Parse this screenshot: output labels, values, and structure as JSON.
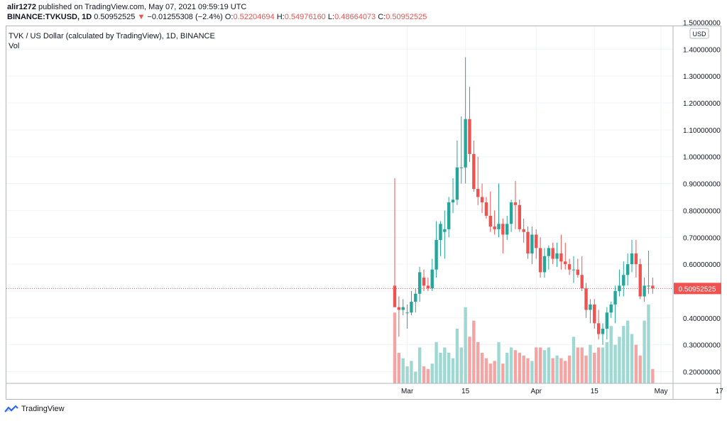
{
  "header": {
    "author": "alir1272",
    "published_text": "published on TradingView.com, May 07, 2021 09:59:19 UTC"
  },
  "ohlc": {
    "symbol": "BINANCE:TVKUSD, 1D",
    "last": "0.50952525",
    "arrow": "▼",
    "change": "−0.01255308 (−2.4%)",
    "o_label": "O:",
    "o": "0.52204694",
    "h_label": "H:",
    "h": "0.54976160",
    "l_label": "L:",
    "l": "0.48664073",
    "c_label": "C:",
    "c": "0.50952525"
  },
  "legend": {
    "title": "TVK / US Dollar (calculated by TradingView), 1D, BINANCE",
    "vol": "Vol"
  },
  "footer": {
    "brand": "TradingView",
    "logo_icon": "tradingview-logo-icon"
  },
  "colors": {
    "up": "#26a69a",
    "down": "#ef5350",
    "vol_up": "#9fd8d2",
    "vol_down": "#f5a4a4",
    "grid": "#f0f3fa",
    "axis_text": "#131722"
  },
  "chart_data": {
    "type": "candlestick",
    "currency": "USD",
    "current_price": 0.50952525,
    "current_price_label": "0.50952525",
    "ylim": [
      0.16,
      1.5
    ],
    "y_ticks": [
      0.2,
      0.3,
      0.4,
      0.5,
      0.6,
      0.7,
      0.8,
      0.9,
      1.0,
      1.1,
      1.2,
      1.3,
      1.4,
      1.5
    ],
    "y_tick_labels": [
      "0.20000000",
      "0.30000000",
      "0.40000000",
      "",
      "0.60000000",
      "0.70000000",
      "0.80000000",
      "0.90000000",
      "1.00000000",
      "1.10000000",
      "1.20000000",
      "1.30000000",
      "1.40000000",
      "1.50000000"
    ],
    "x_labels": [
      {
        "index": 3,
        "label": "Mar"
      },
      {
        "index": 17,
        "label": "15"
      },
      {
        "index": 34,
        "label": "Apr"
      },
      {
        "index": 48,
        "label": "15"
      },
      {
        "index": 64,
        "label": "May"
      },
      {
        "index": 78,
        "label": "17"
      }
    ],
    "candles": [
      [
        0.52,
        0.92,
        0.44,
        0.44
      ],
      [
        0.44,
        0.48,
        0.33,
        0.43
      ],
      [
        0.43,
        0.47,
        0.41,
        0.44
      ],
      [
        0.42,
        0.45,
        0.36,
        0.42
      ],
      [
        0.42,
        0.5,
        0.41,
        0.46
      ],
      [
        0.46,
        0.51,
        0.42,
        0.49
      ],
      [
        0.49,
        0.59,
        0.46,
        0.57
      ],
      [
        0.55,
        0.58,
        0.5,
        0.52
      ],
      [
        0.52,
        0.55,
        0.5,
        0.51
      ],
      [
        0.51,
        0.62,
        0.5,
        0.58
      ],
      [
        0.58,
        0.76,
        0.55,
        0.69
      ],
      [
        0.69,
        0.76,
        0.63,
        0.75
      ],
      [
        0.72,
        0.8,
        0.62,
        0.73
      ],
      [
        0.73,
        0.85,
        0.7,
        0.83
      ],
      [
        0.83,
        0.92,
        0.79,
        0.84
      ],
      [
        0.84,
        1.06,
        0.82,
        0.96
      ],
      [
        0.96,
        1.15,
        0.9,
        0.96
      ],
      [
        0.96,
        1.37,
        0.9,
        1.14
      ],
      [
        1.14,
        1.26,
        0.98,
        1.01
      ],
      [
        1.01,
        1.06,
        0.87,
        0.88
      ],
      [
        0.88,
        1.0,
        0.82,
        0.85
      ],
      [
        0.85,
        0.9,
        0.79,
        0.83
      ],
      [
        0.83,
        0.85,
        0.77,
        0.78
      ],
      [
        0.78,
        0.87,
        0.72,
        0.74
      ],
      [
        0.74,
        0.8,
        0.71,
        0.73
      ],
      [
        0.73,
        0.9,
        0.7,
        0.75
      ],
      [
        0.75,
        0.77,
        0.64,
        0.71
      ],
      [
        0.71,
        0.78,
        0.69,
        0.75
      ],
      [
        0.75,
        0.84,
        0.72,
        0.83
      ],
      [
        0.83,
        0.91,
        0.73,
        0.82
      ],
      [
        0.82,
        0.84,
        0.72,
        0.73
      ],
      [
        0.73,
        0.77,
        0.68,
        0.72
      ],
      [
        0.72,
        0.74,
        0.62,
        0.64
      ],
      [
        0.64,
        0.74,
        0.6,
        0.71
      ],
      [
        0.71,
        0.73,
        0.62,
        0.66
      ],
      [
        0.66,
        0.7,
        0.55,
        0.57
      ],
      [
        0.57,
        0.66,
        0.55,
        0.63
      ],
      [
        0.63,
        0.67,
        0.58,
        0.66
      ],
      [
        0.66,
        0.68,
        0.6,
        0.62
      ],
      [
        0.62,
        0.68,
        0.59,
        0.64
      ],
      [
        0.64,
        0.71,
        0.58,
        0.61
      ],
      [
        0.61,
        0.68,
        0.58,
        0.6
      ],
      [
        0.6,
        0.62,
        0.56,
        0.58
      ],
      [
        0.58,
        0.63,
        0.53,
        0.58
      ],
      [
        0.58,
        0.62,
        0.55,
        0.56
      ],
      [
        0.56,
        0.63,
        0.5,
        0.51
      ],
      [
        0.51,
        0.53,
        0.4,
        0.43
      ],
      [
        0.43,
        0.47,
        0.38,
        0.45
      ],
      [
        0.45,
        0.47,
        0.36,
        0.38
      ],
      [
        0.38,
        0.43,
        0.32,
        0.34
      ],
      [
        0.34,
        0.38,
        0.3,
        0.36
      ],
      [
        0.36,
        0.44,
        0.32,
        0.42
      ],
      [
        0.42,
        0.46,
        0.4,
        0.45
      ],
      [
        0.45,
        0.52,
        0.38,
        0.5
      ],
      [
        0.5,
        0.58,
        0.48,
        0.52
      ],
      [
        0.52,
        0.61,
        0.48,
        0.56
      ],
      [
        0.56,
        0.64,
        0.52,
        0.6
      ],
      [
        0.6,
        0.69,
        0.57,
        0.64
      ],
      [
        0.64,
        0.69,
        0.55,
        0.6
      ],
      [
        0.6,
        0.62,
        0.47,
        0.48
      ],
      [
        0.48,
        0.55,
        0.46,
        0.52
      ],
      [
        0.52,
        0.65,
        0.49,
        0.52
      ],
      [
        0.52,
        0.55,
        0.49,
        0.51
      ]
    ],
    "volume": [
      0.42,
      0.27,
      0.25,
      0.22,
      0.24,
      0.2,
      0.29,
      0.22,
      0.21,
      0.23,
      0.31,
      0.27,
      0.29,
      0.27,
      0.25,
      0.36,
      0.29,
      0.44,
      0.33,
      0.39,
      0.31,
      0.27,
      0.25,
      0.23,
      0.24,
      0.31,
      0.23,
      0.27,
      0.29,
      0.28,
      0.27,
      0.26,
      0.25,
      0.24,
      0.29,
      0.29,
      0.28,
      0.29,
      0.25,
      0.26,
      0.25,
      0.24,
      0.26,
      0.33,
      0.29,
      0.29,
      0.26,
      0.3,
      0.27,
      0.29,
      0.29,
      0.31,
      0.37,
      0.3,
      0.33,
      0.37,
      0.39,
      0.34,
      0.3,
      0.26,
      0.39,
      0.45,
      0.21
    ]
  }
}
